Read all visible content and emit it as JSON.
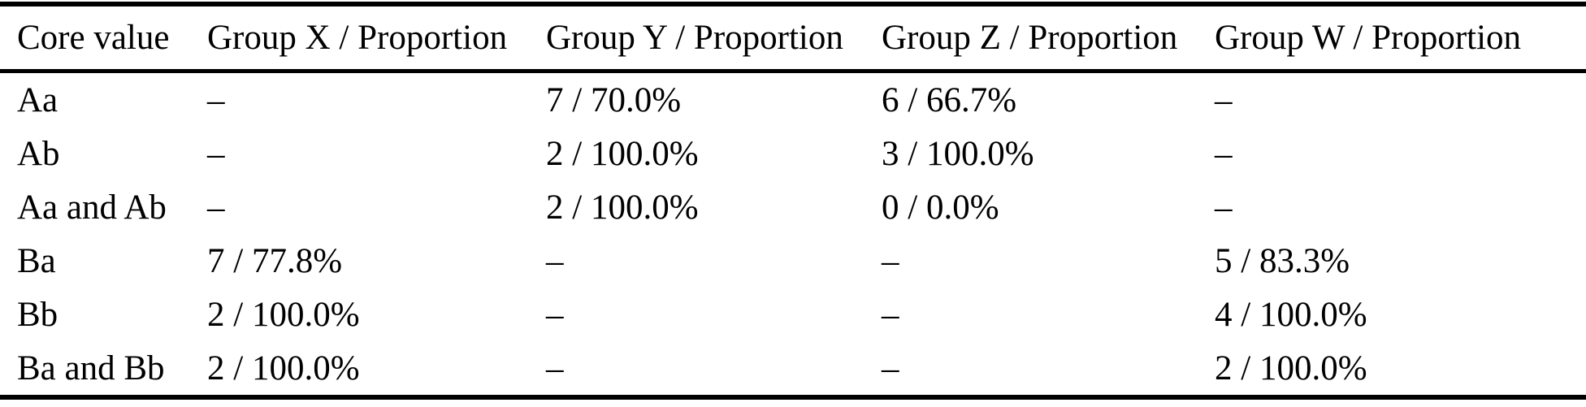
{
  "colors": {
    "background": "#ffffff",
    "text": "#000000",
    "rule": "#000000"
  },
  "table": {
    "columns": [
      {
        "label": "Core value"
      },
      {
        "label": "Group X / Proportion"
      },
      {
        "label": "Group Y / Proportion"
      },
      {
        "label": "Group Z / Proportion"
      },
      {
        "label": "Group W / Proportion"
      }
    ],
    "rows": [
      {
        "core_value": "Aa",
        "group_x": "–",
        "group_y": "7 / 70.0%",
        "group_z": "6 / 66.7%",
        "group_w": "–"
      },
      {
        "core_value": "Ab",
        "group_x": "–",
        "group_y": "2 / 100.0%",
        "group_z": "3 / 100.0%",
        "group_w": "–"
      },
      {
        "core_value": "Aa and Ab",
        "group_x": "–",
        "group_y": "2 / 100.0%",
        "group_z": "0 / 0.0%",
        "group_w": "–"
      },
      {
        "core_value": "Ba",
        "group_x": "7 / 77.8%",
        "group_y": "–",
        "group_z": "–",
        "group_w": "5 / 83.3%"
      },
      {
        "core_value": "Bb",
        "group_x": "2 / 100.0%",
        "group_y": "–",
        "group_z": "–",
        "group_w": "4 / 100.0%"
      },
      {
        "core_value": "Ba and Bb",
        "group_x": "2 / 100.0%",
        "group_y": "–",
        "group_z": "–",
        "group_w": "2 / 100.0%"
      }
    ]
  },
  "chart_data": {
    "type": "table",
    "title": "",
    "columns": [
      "Core value",
      "Group X / Proportion",
      "Group Y / Proportion",
      "Group Z / Proportion",
      "Group W / Proportion"
    ],
    "rows": [
      [
        "Aa",
        "–",
        "7 / 70.0%",
        "6 / 66.7%",
        "–"
      ],
      [
        "Ab",
        "–",
        "2 / 100.0%",
        "3 / 100.0%",
        "–"
      ],
      [
        "Aa and Ab",
        "–",
        "2 / 100.0%",
        "0 / 0.0%",
        "–"
      ],
      [
        "Ba",
        "7 / 77.8%",
        "–",
        "–",
        "5 / 83.3%"
      ],
      [
        "Bb",
        "2 / 100.0%",
        "–",
        "–",
        "4 / 100.0%"
      ],
      [
        "Ba and Bb",
        "2 / 100.0%",
        "–",
        "–",
        "2 / 100.0%"
      ]
    ],
    "counts": {
      "group_y": {
        "Aa": 7,
        "Ab": 2,
        "Aa and Ab": 2
      },
      "group_z": {
        "Aa": 6,
        "Ab": 3,
        "Aa and Ab": 0
      },
      "group_x": {
        "Ba": 7,
        "Bb": 2,
        "Ba and Bb": 2
      },
      "group_w": {
        "Ba": 5,
        "Bb": 4,
        "Ba and Bb": 2
      }
    },
    "proportions_percent": {
      "group_y": {
        "Aa": 70.0,
        "Ab": 100.0,
        "Aa and Ab": 100.0
      },
      "group_z": {
        "Aa": 66.7,
        "Ab": 100.0,
        "Aa and Ab": 0.0
      },
      "group_x": {
        "Ba": 77.8,
        "Bb": 100.0,
        "Ba and Bb": 100.0
      },
      "group_w": {
        "Ba": 83.3,
        "Bb": 100.0,
        "Ba and Bb": 100.0
      }
    }
  }
}
